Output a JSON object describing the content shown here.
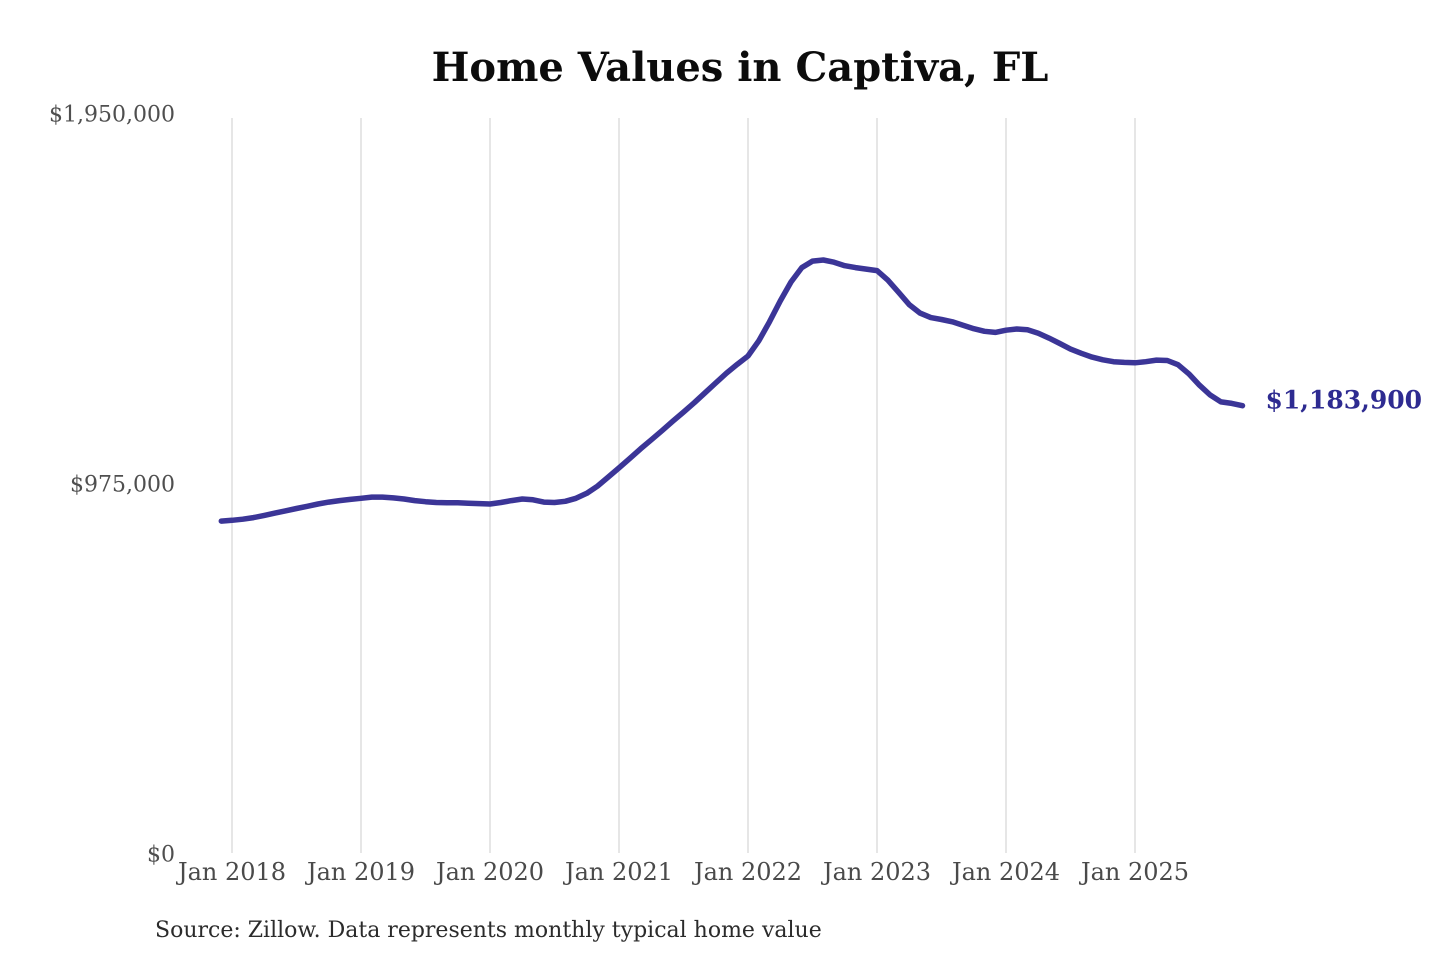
{
  "chart_data": {
    "type": "line",
    "title": "Home Values in Captiva, FL",
    "source": "Source: Zillow. Data represents monthly typical home value",
    "series_name": "Monthly typical home value",
    "end_label": "$1,183,900",
    "end_value": 1183900,
    "line_color": "#3b3597",
    "end_label_color": "#2e2b91",
    "grid_color": "#cccccc",
    "axis_label_color": "#4a4a4a",
    "legend": "none",
    "grid": "vertical-only",
    "ylim": [
      0,
      1950000
    ],
    "y_ticks": [
      {
        "label": "$1,950,000",
        "value": 1950000
      },
      {
        "label": "$975,000",
        "value": 975000
      },
      {
        "label": "$0",
        "value": 0
      }
    ],
    "x_ticks": [
      "Jan 2018",
      "Jan 2019",
      "Jan 2020",
      "Jan 2021",
      "Jan 2022",
      "Jan 2023",
      "Jan 2024",
      "Jan 2025"
    ],
    "months": [
      "2017-12",
      "2018-01",
      "2018-02",
      "2018-03",
      "2018-04",
      "2018-05",
      "2018-06",
      "2018-07",
      "2018-08",
      "2018-09",
      "2018-10",
      "2018-11",
      "2018-12",
      "2019-01",
      "2019-02",
      "2019-03",
      "2019-04",
      "2019-05",
      "2019-06",
      "2019-07",
      "2019-08",
      "2019-09",
      "2019-10",
      "2019-11",
      "2019-12",
      "2020-01",
      "2020-02",
      "2020-03",
      "2020-04",
      "2020-05",
      "2020-06",
      "2020-07",
      "2020-08",
      "2020-09",
      "2020-10",
      "2020-11",
      "2020-12",
      "2021-01",
      "2021-02",
      "2021-03",
      "2021-04",
      "2021-05",
      "2021-06",
      "2021-07",
      "2021-08",
      "2021-09",
      "2021-10",
      "2021-11",
      "2021-12",
      "2022-01",
      "2022-02",
      "2022-03",
      "2022-04",
      "2022-05",
      "2022-06",
      "2022-07",
      "2022-08",
      "2022-09",
      "2022-10",
      "2022-11",
      "2022-12",
      "2023-01",
      "2023-02",
      "2023-03",
      "2023-04",
      "2023-05",
      "2023-06",
      "2023-07",
      "2023-08",
      "2023-09",
      "2023-10",
      "2023-11",
      "2023-12",
      "2024-01",
      "2024-02",
      "2024-03",
      "2024-04",
      "2024-05",
      "2024-06",
      "2024-07",
      "2024-08",
      "2024-09",
      "2024-10",
      "2024-11",
      "2024-12",
      "2025-01",
      "2025-02",
      "2025-03",
      "2025-04",
      "2025-05",
      "2025-06",
      "2025-07",
      "2025-08",
      "2025-09",
      "2025-10",
      "2025-11"
    ],
    "values": [
      880000,
      882000,
      885000,
      889000,
      895000,
      901000,
      907000,
      913000,
      919000,
      925000,
      930000,
      934000,
      937000,
      940000,
      943000,
      943000,
      941000,
      938000,
      934000,
      931000,
      929000,
      928000,
      928000,
      927000,
      926000,
      925000,
      929000,
      934000,
      938000,
      936000,
      930000,
      929000,
      932000,
      940000,
      953000,
      972000,
      996000,
      1020000,
      1045000,
      1070000,
      1094000,
      1118000,
      1143000,
      1167000,
      1192000,
      1218000,
      1244000,
      1270000,
      1293000,
      1315000,
      1355000,
      1405000,
      1460000,
      1510000,
      1548000,
      1565000,
      1568000,
      1562000,
      1553000,
      1548000,
      1544000,
      1540000,
      1515000,
      1483000,
      1450000,
      1428000,
      1416000,
      1411000,
      1405000,
      1396000,
      1387000,
      1380000,
      1377000,
      1383000,
      1386000,
      1384000,
      1375000,
      1362000,
      1348000,
      1333000,
      1322000,
      1312000,
      1305000,
      1300000,
      1298000,
      1297000,
      1300000,
      1304000,
      1303000,
      1292000,
      1268000,
      1238000,
      1212000,
      1194000,
      1190000,
      1183900
    ]
  }
}
